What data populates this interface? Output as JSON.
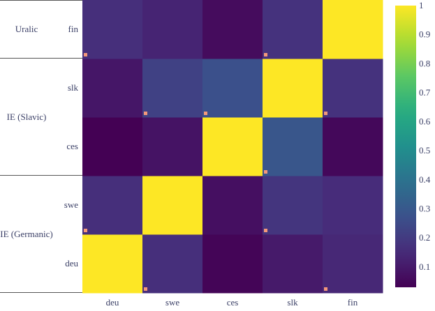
{
  "chart_data": {
    "type": "heatmap",
    "x_categories": [
      "deu",
      "swe",
      "ces",
      "slk",
      "fin"
    ],
    "y_categories": [
      "deu",
      "swe",
      "ces",
      "slk",
      "fin"
    ],
    "groups": [
      {
        "label": "IE (Germanic)",
        "members": [
          "deu",
          "swe"
        ]
      },
      {
        "label": "IE (Slavic)",
        "members": [
          "ces",
          "slk"
        ]
      },
      {
        "label": "Uralic",
        "members": [
          "fin"
        ]
      }
    ],
    "values": [
      [
        1.0,
        0.16,
        0.04,
        0.1,
        0.14
      ],
      [
        0.16,
        1.0,
        0.07,
        0.18,
        0.15
      ],
      [
        0.03,
        0.08,
        1.0,
        0.29,
        0.05
      ],
      [
        0.09,
        0.22,
        0.27,
        1.0,
        0.17
      ],
      [
        0.16,
        0.13,
        0.06,
        0.17,
        1.0
      ]
    ],
    "markers": [
      {
        "row": "deu",
        "col": "swe"
      },
      {
        "row": "deu",
        "col": "fin"
      },
      {
        "row": "swe",
        "col": "deu"
      },
      {
        "row": "swe",
        "col": "slk"
      },
      {
        "row": "ces",
        "col": "slk"
      },
      {
        "row": "slk",
        "col": "swe"
      },
      {
        "row": "slk",
        "col": "ces"
      },
      {
        "row": "slk",
        "col": "fin"
      },
      {
        "row": "fin",
        "col": "deu"
      },
      {
        "row": "fin",
        "col": "slk"
      }
    ],
    "marker_color": "#f4987a",
    "colorscale": "viridis",
    "zmin": 0.03,
    "zmax": 1,
    "colorbar_ticks": [
      0.1,
      0.2,
      0.3,
      0.4,
      0.5,
      0.6,
      0.7,
      0.8,
      0.9,
      1
    ],
    "colorbar_tick_labels": [
      "0.1",
      "0.2",
      "0.3",
      "0.4",
      "0.5",
      "0.6",
      "0.7",
      "0.8",
      "0.9",
      "1"
    ],
    "title": "",
    "xlabel": "",
    "ylabel": ""
  }
}
